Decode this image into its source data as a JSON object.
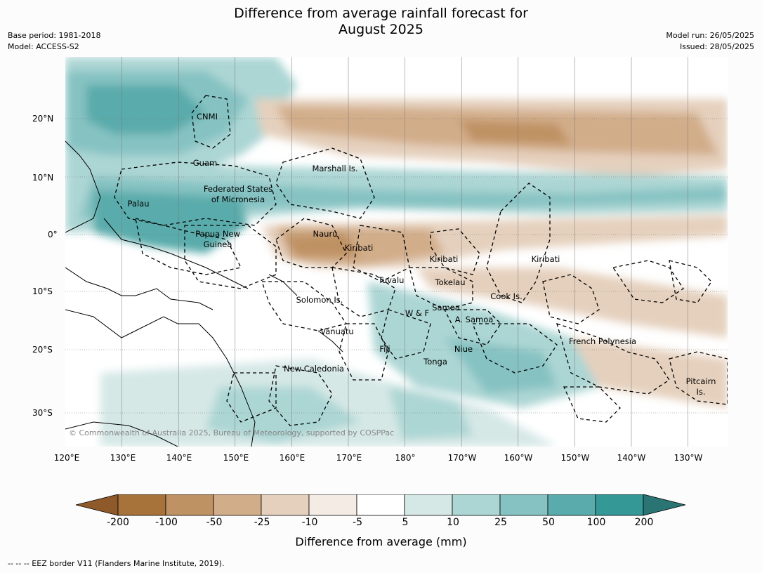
{
  "title_line1": "Difference from average rainfall forecast for",
  "title_line2": "August 2025",
  "meta_left": {
    "line1": "Base period: 1981-2018",
    "line2": "Model: ACCESS-S2"
  },
  "meta_right": {
    "line1": "Model run: 26/05/2025",
    "line2": "Issued: 28/05/2025"
  },
  "lon_labels": [
    "120°E",
    "130°E",
    "140°E",
    "150°E",
    "160°E",
    "170°E",
    "180°",
    "170°W",
    "160°W",
    "150°W",
    "140°W",
    "130°W"
  ],
  "lat_labels": [
    "20°N",
    "10°N",
    "0°",
    "10°S",
    "20°S",
    "30°S"
  ],
  "places": {
    "cnmi": "CNMI",
    "guam": "Guam",
    "marshall": "Marshall Is.",
    "fsm1": "Federated States",
    "fsm2": "of Micronesia",
    "palau": "Palau",
    "png1": "Papua New",
    "png2": "Guinea",
    "nauru": "Nauru",
    "kiribati_w": "Kiribati",
    "kiribati_c": "Kiribati",
    "kiribati_e": "Kiribati",
    "tuvalu": "Tuvalu",
    "tokelau": "Tokelau",
    "solomon": "Solomon Is.",
    "wf": "W & F",
    "samoa": "Samoa",
    "asamoa": "A. Samoa",
    "cook": "Cook Is.",
    "vanuatu": "Vanuatu",
    "fiji": "Fiji",
    "niue": "Niue",
    "tonga": "Tonga",
    "newcal": "New Caledonia",
    "frpoly": "French Polynesia",
    "pitcairn1": "Pitcairn",
    "pitcairn2": "Is."
  },
  "copyright": "© Commonwealth of Australia 2025, Bureau of Meteorology, supported by COSPPac",
  "colorbar": {
    "ticks": [
      "-200",
      "-100",
      "-50",
      "-25",
      "-10",
      "-5",
      "5",
      "10",
      "25",
      "50",
      "100",
      "200"
    ],
    "colors": [
      "#8f5a2a",
      "#a8733b",
      "#bf9264",
      "#d2ad8a",
      "#e5d0bd",
      "#f4ebe5",
      "#ffffff",
      "#d5e8e6",
      "#acd6d4",
      "#86c2c2",
      "#5aabab",
      "#349897",
      "#2a7474"
    ],
    "label": "Difference from average (mm)"
  },
  "footer": "--  --  -- EEZ border V11 (Flanders Marine Institute, 2019)."
}
